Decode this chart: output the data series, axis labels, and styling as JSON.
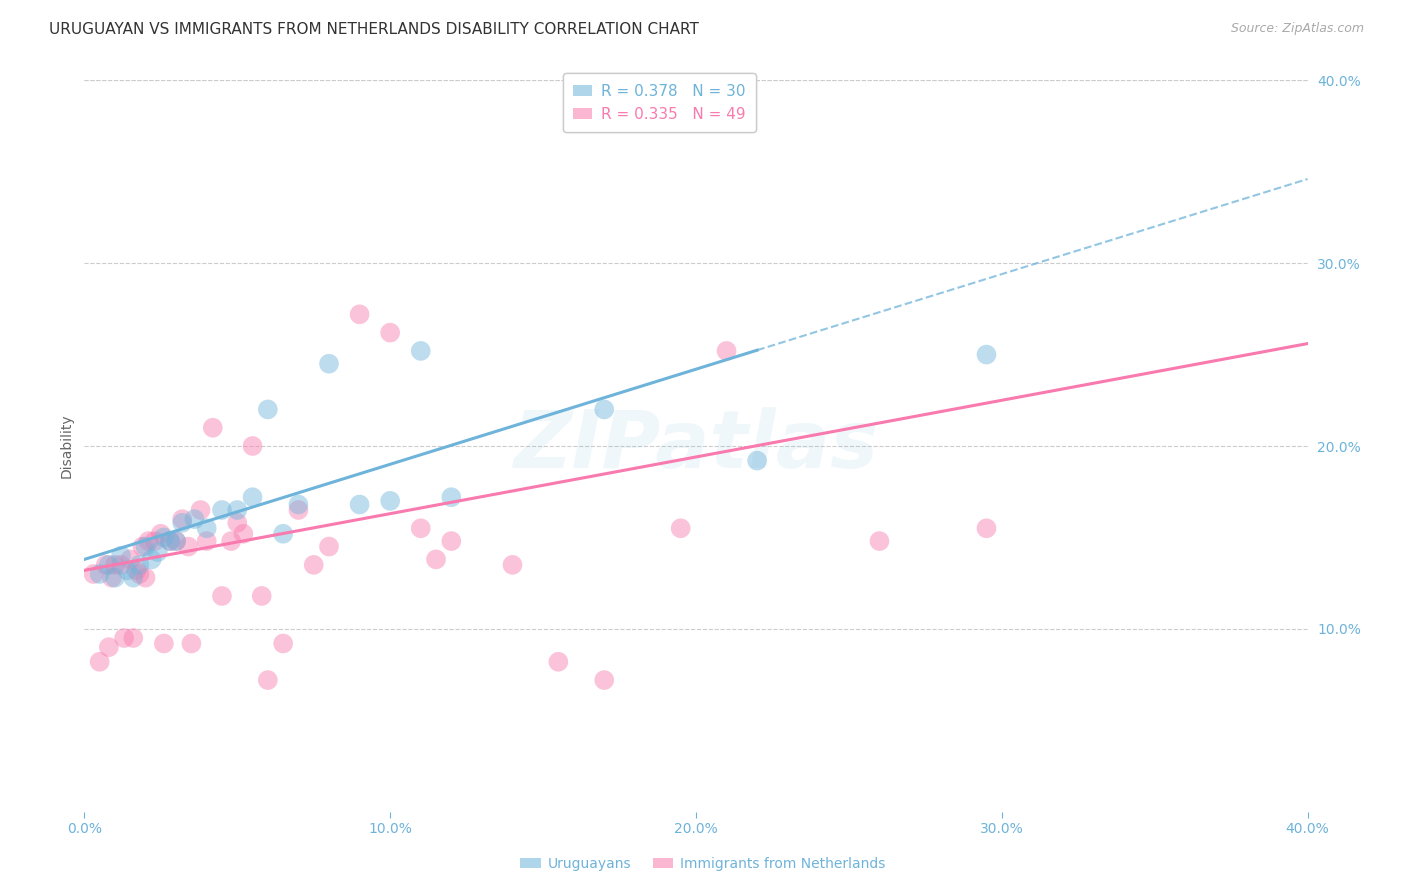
{
  "title": "URUGUAYAN VS IMMIGRANTS FROM NETHERLANDS DISABILITY CORRELATION CHART",
  "source": "Source: ZipAtlas.com",
  "ylabel": "Disability",
  "watermark": "ZIPatlas",
  "xlim": [
    0.0,
    0.4
  ],
  "ylim": [
    0.0,
    0.4
  ],
  "xticks": [
    0.0,
    0.1,
    0.2,
    0.3,
    0.4
  ],
  "yticks": [
    0.1,
    0.2,
    0.3,
    0.4
  ],
  "xtick_labels": [
    "0.0%",
    "10.0%",
    "20.0%",
    "30.0%",
    "40.0%"
  ],
  "ytick_labels": [
    "10.0%",
    "20.0%",
    "30.0%",
    "40.0%"
  ],
  "uruguayans_color": "#6eb3da",
  "netherlands_color": "#f87aae",
  "legend_r_uruguayans": "R = 0.378",
  "legend_n_uruguayans": "N = 30",
  "legend_r_netherlands": "R = 0.335",
  "legend_n_netherlands": "N = 49",
  "uruguayans_x": [
    0.005,
    0.008,
    0.01,
    0.012,
    0.014,
    0.016,
    0.018,
    0.02,
    0.022,
    0.024,
    0.026,
    0.028,
    0.03,
    0.032,
    0.036,
    0.04,
    0.045,
    0.05,
    0.055,
    0.06,
    0.065,
    0.07,
    0.08,
    0.09,
    0.1,
    0.11,
    0.12,
    0.17,
    0.22,
    0.295
  ],
  "uruguayans_y": [
    0.13,
    0.135,
    0.128,
    0.14,
    0.132,
    0.128,
    0.135,
    0.145,
    0.138,
    0.142,
    0.15,
    0.148,
    0.148,
    0.158,
    0.16,
    0.155,
    0.165,
    0.165,
    0.172,
    0.22,
    0.152,
    0.168,
    0.245,
    0.168,
    0.17,
    0.252,
    0.172,
    0.22,
    0.192,
    0.25
  ],
  "netherlands_x": [
    0.003,
    0.005,
    0.007,
    0.008,
    0.009,
    0.01,
    0.012,
    0.013,
    0.015,
    0.016,
    0.017,
    0.018,
    0.019,
    0.02,
    0.021,
    0.023,
    0.025,
    0.026,
    0.028,
    0.03,
    0.032,
    0.034,
    0.035,
    0.038,
    0.04,
    0.042,
    0.045,
    0.048,
    0.05,
    0.052,
    0.055,
    0.058,
    0.06,
    0.065,
    0.07,
    0.075,
    0.08,
    0.09,
    0.1,
    0.11,
    0.115,
    0.12,
    0.14,
    0.155,
    0.17,
    0.195,
    0.21,
    0.26,
    0.295
  ],
  "netherlands_y": [
    0.13,
    0.082,
    0.135,
    0.09,
    0.128,
    0.135,
    0.135,
    0.095,
    0.138,
    0.095,
    0.132,
    0.13,
    0.145,
    0.128,
    0.148,
    0.148,
    0.152,
    0.092,
    0.148,
    0.148,
    0.16,
    0.145,
    0.092,
    0.165,
    0.148,
    0.21,
    0.118,
    0.148,
    0.158,
    0.152,
    0.2,
    0.118,
    0.072,
    0.092,
    0.165,
    0.135,
    0.145,
    0.272,
    0.262,
    0.155,
    0.138,
    0.148,
    0.135,
    0.082,
    0.072,
    0.155,
    0.252,
    0.148,
    0.155
  ],
  "background_color": "#ffffff",
  "grid_color": "#cccccc",
  "tick_color": "#6eb3da",
  "title_color": "#333333",
  "title_fontsize": 11,
  "axis_label_fontsize": 10,
  "tick_fontsize": 10,
  "legend_fontsize": 11,
  "blue_line_x_solid_end": 0.22,
  "blue_line_intercept": 0.138,
  "blue_line_slope": 0.52,
  "pink_line_intercept": 0.132,
  "pink_line_slope": 0.31
}
